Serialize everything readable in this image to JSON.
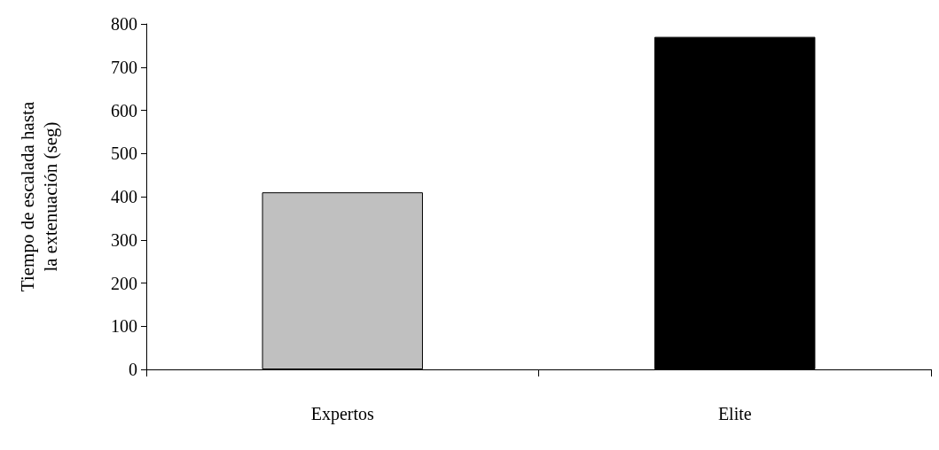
{
  "chart_data": {
    "type": "bar",
    "ylabel": "Tiempo de escalada hasta\nla extenuación (seg)",
    "categories": [
      "Expertos",
      "Elite"
    ],
    "values": [
      410,
      770
    ],
    "colors": [
      "#c0c0c0",
      "#000000"
    ],
    "ylim": [
      0,
      800
    ],
    "yticks": [
      0,
      100,
      200,
      300,
      400,
      500,
      600,
      700,
      800
    ],
    "grid": false
  }
}
